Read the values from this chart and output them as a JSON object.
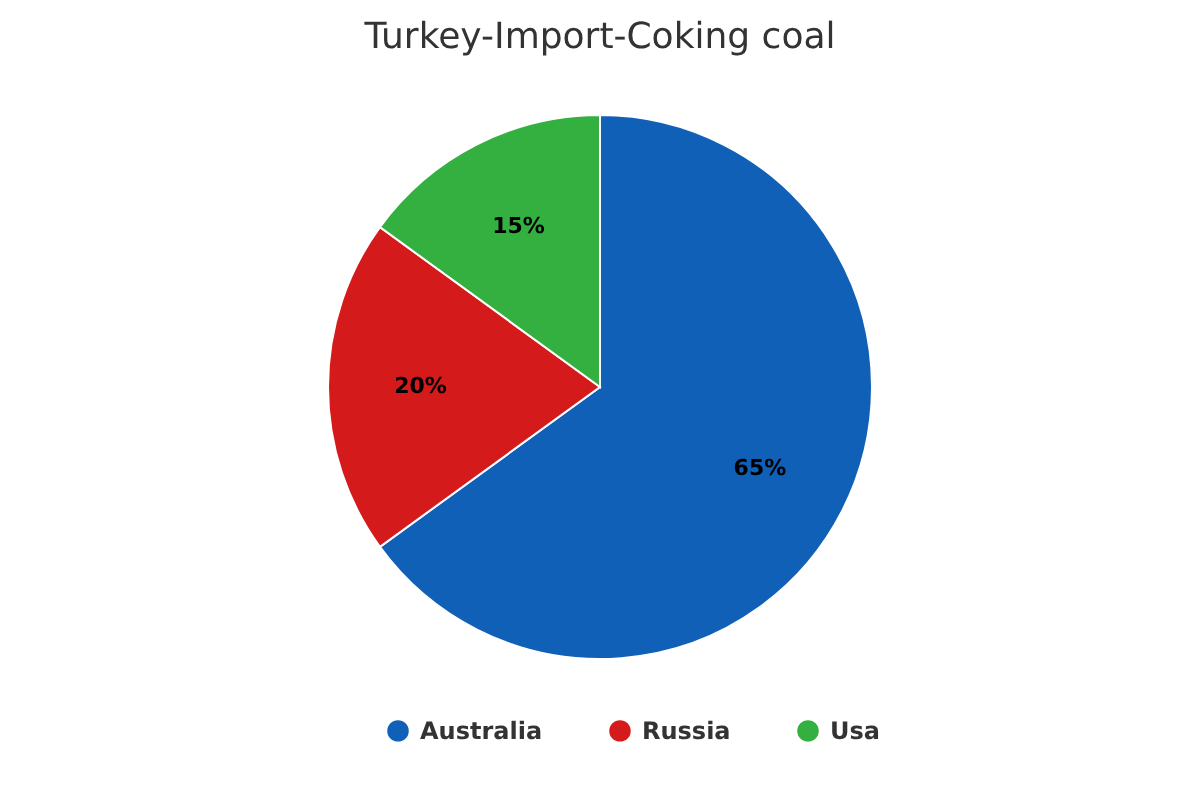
{
  "chart_data": {
    "type": "pie",
    "title": "Turkey-Import-Coking coal",
    "categories": [
      "Australia",
      "Russia",
      "Usa"
    ],
    "values": [
      65,
      20,
      15
    ],
    "colors": [
      "#1060b8",
      "#d41a1a",
      "#33b040"
    ],
    "value_labels": [
      "65%",
      "20%",
      "15%"
    ],
    "legend": "bottom"
  }
}
